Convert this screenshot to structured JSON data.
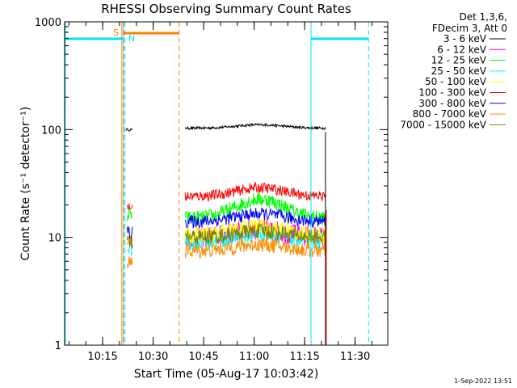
{
  "chart_data": {
    "type": "line",
    "title": "RHESSI Observing Summary Count Rates",
    "xlabel": "Start Time (05-Aug-17 10:03:42)",
    "ylabel": "Count Rate (s⁻¹ detector⁻¹)",
    "yscale": "log",
    "ylim": [
      1,
      1000
    ],
    "xlim_minutes_after_start": [
      0,
      96
    ],
    "y_ticks": [
      {
        "value": 1,
        "label": "1"
      },
      {
        "value": 10,
        "label": "10"
      },
      {
        "value": 100,
        "label": "100"
      },
      {
        "value": 1000,
        "label": "1000"
      }
    ],
    "x_ticks": [
      {
        "minute": 11.3,
        "label": "10:15"
      },
      {
        "minute": 26.3,
        "label": "10:30"
      },
      {
        "minute": 41.3,
        "label": "10:45"
      },
      {
        "minute": 56.3,
        "label": "11:00"
      },
      {
        "minute": 71.3,
        "label": "11:15"
      },
      {
        "minute": 86.3,
        "label": "11:30"
      }
    ],
    "legend_header": [
      "Det 1,3,6,",
      "FDecim 3, Att 0"
    ],
    "series": [
      {
        "name": "3 - 6 keV",
        "color": "#000000",
        "seg1": [
          18.2,
          20.1
        ],
        "level1": 100,
        "seg2": [
          35.8,
          77.5
        ],
        "level2": 103,
        "trend": 0.08,
        "noise": 0.012
      },
      {
        "name": "6 - 12 keV",
        "color": "#ff00ff",
        "seg1": [
          18.6,
          20.1
        ],
        "level1": 9,
        "seg2": [
          35.8,
          77.5
        ],
        "level2": 10,
        "trend": 0.18,
        "noise": 0.1
      },
      {
        "name": "12 - 25 keV",
        "color": "#00ff00",
        "seg1": [
          18.6,
          20.1
        ],
        "level1": 16,
        "seg2": [
          35.8,
          77.5
        ],
        "level2": 15,
        "trend": 0.45,
        "noise": 0.07
      },
      {
        "name": "25 - 50 keV",
        "color": "#00ffff",
        "seg1": [
          18.6,
          20.1
        ],
        "level1": 8,
        "seg2": [
          35.8,
          77.5
        ],
        "level2": 9,
        "trend": 0.2,
        "noise": 0.08
      },
      {
        "name": "50 - 100 keV",
        "color": "#ffff00",
        "seg1": [
          18.6,
          20.1
        ],
        "level1": 10,
        "seg2": [
          35.8,
          77.5
        ],
        "level2": 10.5,
        "trend": 0.2,
        "noise": 0.08
      },
      {
        "name": "100 - 300 keV",
        "color": "#ff0000",
        "seg1": [
          18.6,
          20.1
        ],
        "level1": 19,
        "seg2": [
          35.8,
          77.5
        ],
        "level2": 24,
        "trend": 0.2,
        "noise": 0.05
      },
      {
        "name": "300 - 800 keV",
        "color": "#0000ff",
        "seg1": [
          18.6,
          20.1
        ],
        "level1": 11,
        "seg2": [
          35.8,
          77.5
        ],
        "level2": 14,
        "trend": 0.18,
        "noise": 0.06
      },
      {
        "name": "800 - 7000 keV",
        "color": "#ff8c00",
        "seg1": [
          18.6,
          20.1
        ],
        "level1": 6,
        "seg2": [
          35.8,
          77.5
        ],
        "level2": 7.5,
        "trend": 0.15,
        "noise": 0.07
      },
      {
        "name": "7000 - 15000 keV",
        "color": "#808000",
        "seg1": [
          18.6,
          20.1
        ],
        "level1": 9,
        "seg2": [
          35.8,
          77.5
        ],
        "level2": 10,
        "trend": 0.15,
        "noise": 0.07
      }
    ],
    "flags": [
      {
        "name": "SAA",
        "label": "S",
        "color": "#ff8000",
        "start": 17.0,
        "end": 34.0
      },
      {
        "name": "Night",
        "label": "N",
        "color": "#00e0ff",
        "start": 17.5,
        "end": 17.5
      }
    ],
    "night_intervals": [
      {
        "start": 0,
        "end": 17.5
      },
      {
        "start": 73.2,
        "end": 90.3
      }
    ],
    "vertical_markers": [
      {
        "minute": 0.2,
        "color": "#00e0ff",
        "style": "solid"
      },
      {
        "minute": 17.5,
        "color": "#00e0ff",
        "style": "solid"
      },
      {
        "minute": 17.9,
        "color": "#00e0ff",
        "style": "dashed"
      },
      {
        "minute": 17.0,
        "color": "#ff8000",
        "style": "solid"
      },
      {
        "minute": 17.4,
        "color": "#ff8000",
        "style": "dashed"
      },
      {
        "minute": 34.0,
        "color": "#ff8000",
        "style": "dashed"
      },
      {
        "minute": 73.2,
        "color": "#00e0ff",
        "style": "solid"
      },
      {
        "minute": 90.3,
        "color": "#00e0ff",
        "style": "dashed"
      }
    ]
  },
  "footer_date": "1-Sep-2022 13:51"
}
